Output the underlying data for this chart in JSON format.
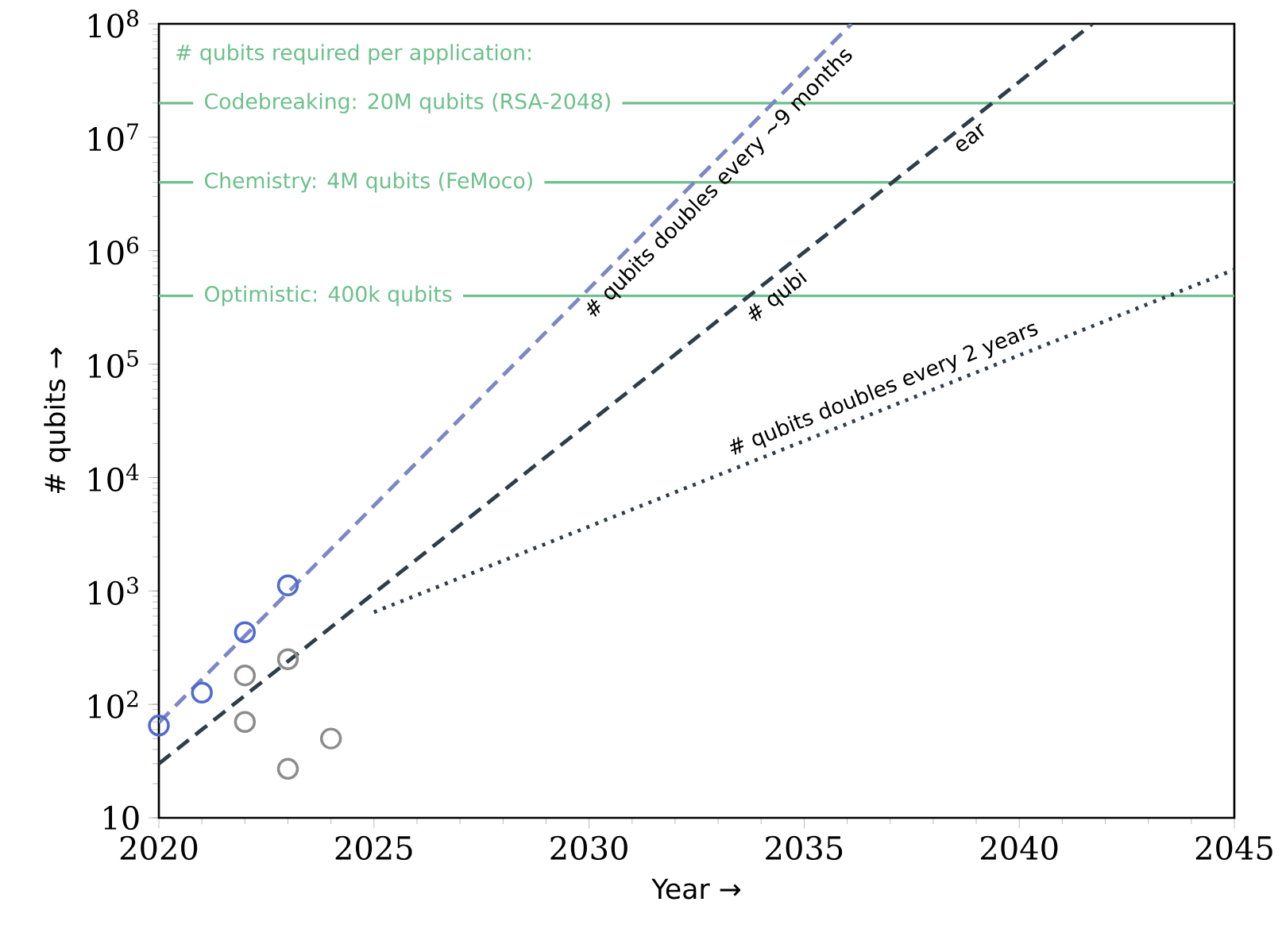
{
  "chart_data": {
    "type": "scatter",
    "xlabel": "Year →",
    "ylabel": "# qubits →",
    "xlim": [
      2020,
      2045
    ],
    "xticks": [
      2020,
      2025,
      2030,
      2035,
      2040,
      2045
    ],
    "ylim": [
      10,
      100000000
    ],
    "log": true,
    "yticks": [
      {
        "value": 10,
        "label": "10"
      },
      {
        "value": 100,
        "label": "10$^{2}$"
      },
      {
        "value": 1000,
        "label": "10$^{3}$"
      },
      {
        "value": 10000,
        "label": "10$^{4}$"
      },
      {
        "value": 100000,
        "label": "10$^{5}$"
      },
      {
        "value": 1000000,
        "label": "10$^{6}$"
      },
      {
        "value": 10000000,
        "label": "10$^{7}$"
      },
      {
        "value": 100000000,
        "label": "10$^{8}$"
      }
    ],
    "series": [
      {
        "marker": "circle",
        "color": "#4f6bd0",
        "x": [
          2020,
          2021,
          2022,
          2023
        ],
        "values": [
          65,
          127,
          433,
          1121
        ]
      },
      {
        "marker": "circle",
        "color": "#8c8c8c",
        "x": [
          2022,
          2022,
          2023,
          2023,
          2024
        ],
        "values": [
          180,
          70,
          250,
          27,
          50
        ]
      },
      {
        "type": "line",
        "marker": "none",
        "color": "#7b87c6",
        "line_style": "dashed",
        "x": [
          2020,
          2036.1
        ],
        "values": [
          69,
          100000000
        ]
      },
      {
        "type": "line",
        "marker": "none",
        "color": "#2d3e4a",
        "line_style": "dashed",
        "x": [
          2020,
          2041.7
        ],
        "values": [
          30,
          100000000
        ]
      },
      {
        "type": "line",
        "marker": "none",
        "color": "#2d3e4a",
        "line_style": "dotted",
        "x": [
          2025,
          2045
        ],
        "values": [
          650,
          680000
        ]
      }
    ],
    "ref_lines": [
      {
        "axis": "y",
        "value": 20000000,
        "label": "Codebreaking: 20M qubits (RSA-2048)",
        "color": "#6cc08b"
      },
      {
        "axis": "y",
        "value": 4000000,
        "label": "Chemistry: 4M qubits (FeMoco)",
        "color": "#6cc08b"
      },
      {
        "axis": "y",
        "value": 400000,
        "label": "Optimistic: 400k qubits",
        "color": "#6cc08b"
      }
    ],
    "annotations": [
      "# qubits required per application:",
      "# qubits doubles every ~9 months",
      "# qubi",
      "ear",
      "# qubits doubles every 2 years"
    ]
  }
}
